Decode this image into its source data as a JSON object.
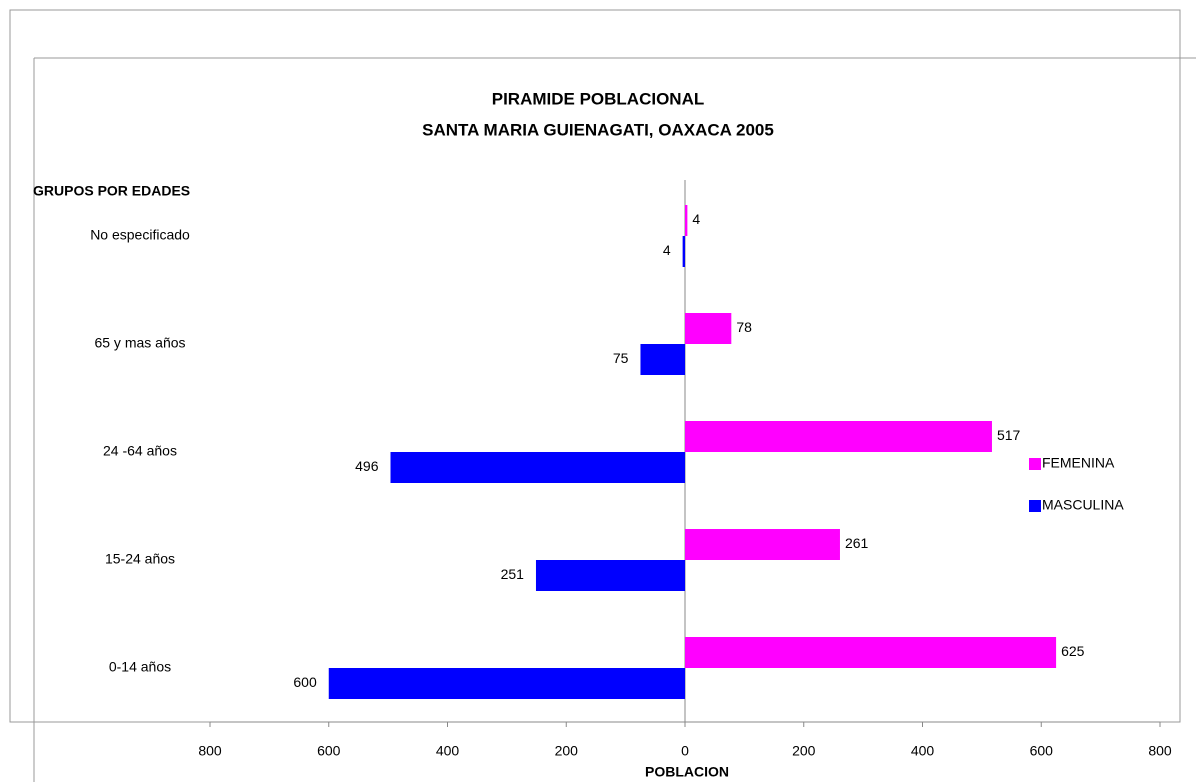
{
  "chart_data": {
    "type": "bar",
    "orientation": "horizontal",
    "title": [
      "PIRAMIDE POBLACIONAL",
      "SANTA MARIA GUIENAGATI, OAXACA 2005"
    ],
    "ylabel": "GRUPOS POR EDADES",
    "xlabel": "POBLACION",
    "categories": [
      "0-14 años",
      "15-24 años",
      "24 -64 años",
      "65 y mas años",
      "No especificado"
    ],
    "series": [
      {
        "name": "FEMENINA",
        "color": "#ff00ff",
        "values": [
          625,
          261,
          517,
          78,
          4
        ]
      },
      {
        "name": "MASCULINA",
        "color": "#0000ff",
        "values": [
          -600,
          -251,
          -496,
          -75,
          -4
        ],
        "value_labels": [
          "600",
          "251",
          "496",
          "75",
          "4"
        ]
      }
    ],
    "xlim": [
      -800,
      800
    ],
    "xticks": [
      {
        "value": -800,
        "label": "800"
      },
      {
        "value": -600,
        "label": "600"
      },
      {
        "value": -400,
        "label": "400"
      },
      {
        "value": -200,
        "label": "200"
      },
      0,
      200,
      400,
      600,
      800
    ],
    "legend": "right",
    "grid": false
  }
}
